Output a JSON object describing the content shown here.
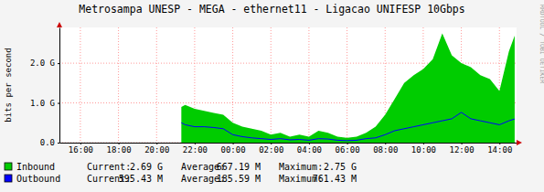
{
  "chart_data": {
    "type": "area",
    "title": "Metrosampa UNESP - MEGA - ethernet11 - Ligacao UNIFESP 10Gbps",
    "y_label": "bits per second",
    "annotations": [
      "RRDTOOL / TOBI OETIKER"
    ],
    "grid": true,
    "xlim": [
      14.9,
      38.9
    ],
    "xticks": [
      {
        "value": 16,
        "label": "16:00"
      },
      {
        "value": 18,
        "label": "18:00"
      },
      {
        "value": 20,
        "label": "20:00"
      },
      {
        "value": 22,
        "label": "22:00"
      },
      {
        "value": 24,
        "label": "00:00"
      },
      {
        "value": 26,
        "label": "02:00"
      },
      {
        "value": 28,
        "label": "04:00"
      },
      {
        "value": 30,
        "label": "06:00"
      },
      {
        "value": 32,
        "label": "08:00"
      },
      {
        "value": 34,
        "label": "10:00"
      },
      {
        "value": 36,
        "label": "12:00"
      },
      {
        "value": 38,
        "label": "14:00"
      }
    ],
    "ylim": [
      0,
      2900000000
    ],
    "yticks": [
      {
        "value": 0,
        "label": "0.0"
      },
      {
        "value": 1000000000,
        "label": "1.0 G"
      },
      {
        "value": 2000000000,
        "label": "2.0 G"
      }
    ],
    "x": [
      21.3,
      21.5,
      22,
      22.5,
      23,
      23.5,
      24,
      24.5,
      25,
      25.5,
      26,
      26.5,
      27,
      27.5,
      28,
      28.5,
      29,
      29.5,
      30,
      30.5,
      31,
      31.5,
      32,
      32.5,
      33,
      33.5,
      34,
      34.5,
      35,
      35.5,
      36,
      36.5,
      37,
      37.5,
      38,
      38.5,
      38.8
    ],
    "series": [
      {
        "name": "Inbound",
        "type": "area",
        "color": "#00cc00",
        "values": [
          900000000,
          950000000,
          850000000,
          800000000,
          750000000,
          700000000,
          500000000,
          400000000,
          350000000,
          300000000,
          200000000,
          250000000,
          150000000,
          200000000,
          150000000,
          300000000,
          250000000,
          150000000,
          120000000,
          150000000,
          250000000,
          400000000,
          700000000,
          1100000000,
          1500000000,
          1700000000,
          1850000000,
          2100000000,
          2750000000,
          2200000000,
          2000000000,
          1900000000,
          1700000000,
          1600000000,
          1300000000,
          2300000000,
          2690000000
        ],
        "stats": [
          {
            "name": "Current:",
            "value": 2690000000,
            "label": "2.69 G"
          },
          {
            "name": "Average:",
            "value": 667190000,
            "label": "667.19 M"
          },
          {
            "name": "Maximum:",
            "value": 2750000000,
            "label": "2.75 G"
          }
        ]
      },
      {
        "name": "Outbound",
        "type": "line",
        "color": "#0000ff",
        "values": [
          500000000,
          450000000,
          400000000,
          400000000,
          380000000,
          350000000,
          200000000,
          150000000,
          120000000,
          100000000,
          80000000,
          100000000,
          70000000,
          80000000,
          60000000,
          100000000,
          90000000,
          60000000,
          50000000,
          60000000,
          100000000,
          120000000,
          200000000,
          300000000,
          350000000,
          400000000,
          450000000,
          500000000,
          550000000,
          600000000,
          761430000,
          600000000,
          550000000,
          500000000,
          450000000,
          550000000,
          595430000
        ],
        "stats": [
          {
            "name": "Current:",
            "value": 595430000,
            "label": "595.43 M"
          },
          {
            "name": "Average:",
            "value": 185590000,
            "label": "185.59 M"
          },
          {
            "name": "Maximum:",
            "value": 761430000,
            "label": "761.43 M"
          }
        ]
      }
    ]
  }
}
